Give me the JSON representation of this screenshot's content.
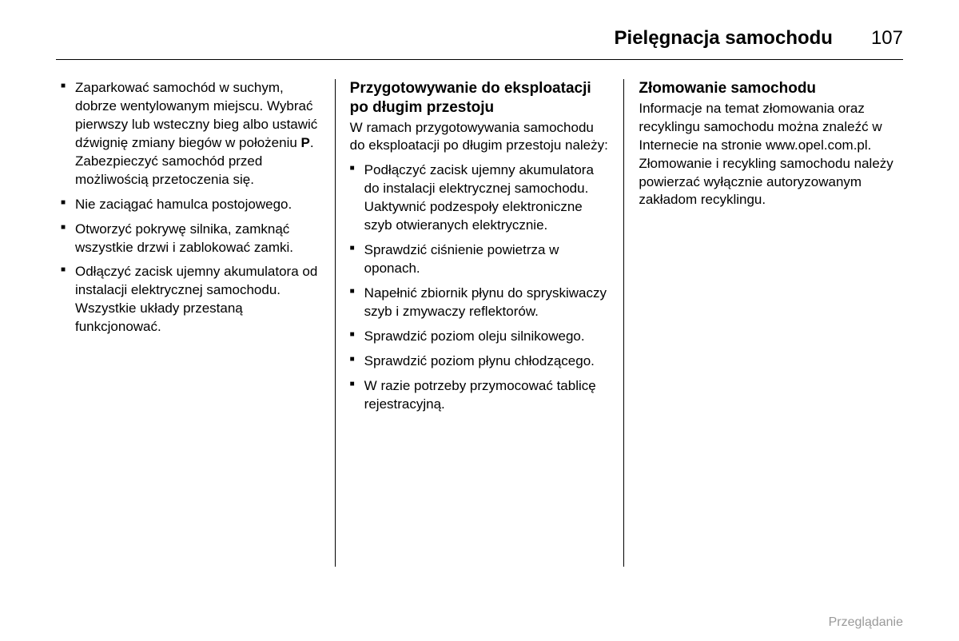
{
  "header": {
    "title": "Pielęgnacja samochodu",
    "page_number": "107"
  },
  "col1": {
    "list": [
      "Zaparkować samochód w suchym, dobrze wentylowanym miejscu. Wybrać pierwszy lub wsteczny bieg albo ustawić dźwignię zmiany biegów w położeniu |P|. Zabezpieczyć samochód przed możliwością przetoczenia się.",
      "Nie zaciągać hamulca postojowego.",
      "Otworzyć pokrywę silnika, zamknąć wszystkie drzwi i zablokować zamki.",
      "Odłączyć zacisk ujemny akumulatora od instalacji elektrycznej samochodu. Wszystkie układy przestaną funkcjonować."
    ]
  },
  "col2": {
    "heading": "Przygotowywanie do eksploatacji po długim przestoju",
    "intro": "W ramach przygotowywania samochodu do eksploatacji po długim przestoju należy:",
    "list": [
      "Podłączyć zacisk ujemny akumulatora do instalacji elektrycznej samochodu. Uaktywnić podzespoły elektroniczne szyb otwieranych elektrycznie.",
      "Sprawdzić ciśnienie powietrza w oponach.",
      "Napełnić zbiornik płynu do spryskiwaczy szyb i zmywaczy reflektorów.",
      "Sprawdzić poziom oleju silnikowego.",
      "Sprawdzić poziom płynu chłodzącego.",
      "W razie potrzeby przymocować tablicę rejestracyjną."
    ]
  },
  "col3": {
    "heading": "Złomowanie samochodu",
    "body": "Informacje na temat złomowania oraz recyklingu samochodu można znaleźć w Internecie na stronie www.opel.com.pl. Złomowanie i recykling samochodu należy powierzać wyłącznie autoryzowanym zakładom recyklingu."
  },
  "footer": "Przeglądanie"
}
